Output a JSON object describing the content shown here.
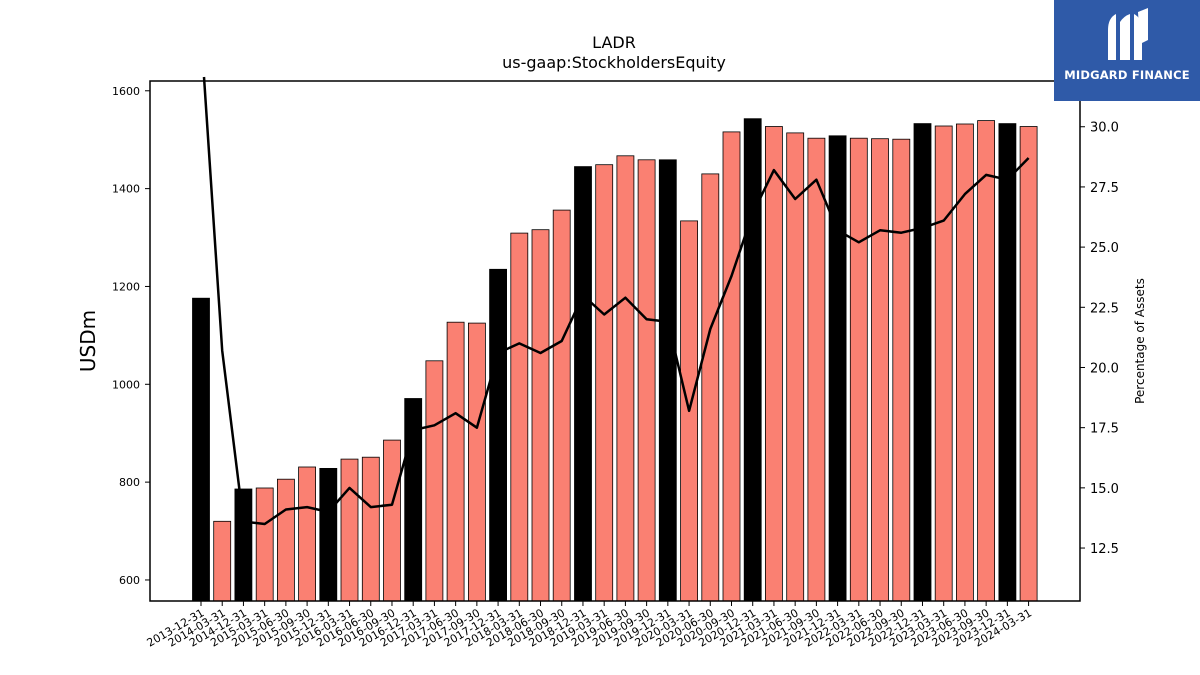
{
  "chart_data": {
    "type": "bar",
    "title": "LADR",
    "subtitle": "us-gaap:StockholdersEquity",
    "ylabel": "USDm",
    "y2label": "Percentage of Assets",
    "ylim": [
      557,
      1620
    ],
    "y2lim": [
      10.3,
      31.9
    ],
    "yticks": [
      600,
      800,
      1000,
      1200,
      1400,
      1600
    ],
    "y2ticks": [
      12.5,
      15.0,
      17.5,
      20.0,
      22.5,
      25.0,
      27.5,
      30.0
    ],
    "categories": [
      "2013-12-31",
      "2014-03-31",
      "2014-12-31",
      "2015-03-31",
      "2015-06-30",
      "2015-09-30",
      "2015-12-31",
      "2016-03-31",
      "2016-06-30",
      "2016-09-30",
      "2016-12-31",
      "2017-03-31",
      "2017-06-30",
      "2017-09-30",
      "2017-12-31",
      "2018-03-31",
      "2018-06-30",
      "2018-09-30",
      "2018-12-31",
      "2019-03-31",
      "2019-06-30",
      "2019-09-30",
      "2019-12-31",
      "2020-03-31",
      "2020-06-30",
      "2020-09-30",
      "2020-12-31",
      "2021-03-31",
      "2021-06-30",
      "2021-09-30",
      "2021-12-31",
      "2022-03-31",
      "2022-06-30",
      "2022-09-30",
      "2022-12-31",
      "2023-03-31",
      "2023-06-30",
      "2023-09-30",
      "2023-12-31",
      "2024-03-31"
    ],
    "series": [
      {
        "values": [
          1176,
          720,
          786,
          788,
          806,
          831,
          828,
          847,
          851,
          886,
          971,
          1048,
          1127,
          1125,
          1235,
          1309,
          1316,
          1356,
          1445,
          1449,
          1467,
          1459,
          1459,
          1334,
          1430,
          1516,
          1543,
          1527,
          1514,
          1503,
          1508,
          1503,
          1502,
          1501,
          1533,
          1528,
          1532,
          1539,
          1533,
          1527
        ],
        "highlight": [
          true,
          false,
          true,
          false,
          false,
          false,
          true,
          false,
          false,
          false,
          true,
          false,
          false,
          false,
          true,
          false,
          false,
          false,
          true,
          false,
          false,
          false,
          true,
          false,
          false,
          false,
          true,
          false,
          false,
          false,
          true,
          false,
          false,
          false,
          true,
          false,
          false,
          false,
          true,
          false
        ]
      },
      {
        "axis": "right",
        "type": "line",
        "values": [
          null,
          20.7,
          13.6,
          13.5,
          14.1,
          14.2,
          14.0,
          15.0,
          14.2,
          14.3,
          17.4,
          17.6,
          18.1,
          17.5,
          20.6,
          21.0,
          20.6,
          21.1,
          23.0,
          22.2,
          22.9,
          22.0,
          21.9,
          18.2,
          21.6,
          23.8,
          26.4,
          28.2,
          27.0,
          27.8,
          25.7,
          25.2,
          25.7,
          25.6,
          25.8,
          26.1,
          27.2,
          28.0,
          27.8,
          28.7
        ],
        "start_above_axis": true
      }
    ],
    "colors": {
      "bar": "#fa8072",
      "bar_highlight": "#000000",
      "line": "#000000"
    },
    "grid": false,
    "legend": "none"
  },
  "logo": {
    "text": "MIDGARD FINANCE",
    "icon": "midgard-logo-icon",
    "color": "#2f5aa8"
  }
}
